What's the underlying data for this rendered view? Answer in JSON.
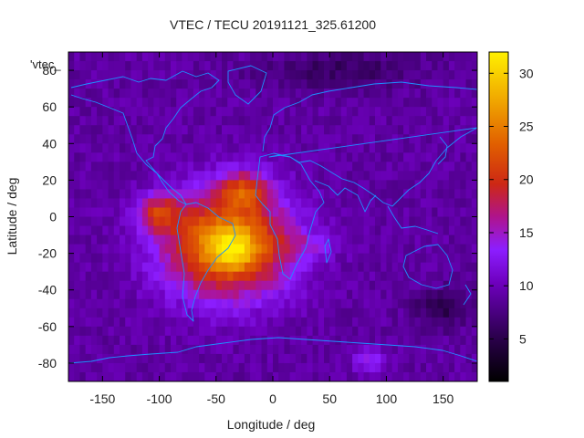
{
  "chart_data": {
    "type": "heatmap",
    "title": "VTEC / TECU 20191121_325.61200",
    "xlabel": "Longitude / deg",
    "ylabel": "Latitude / deg",
    "xlim": [
      -180,
      180
    ],
    "ylim": [
      -90,
      90
    ],
    "xticks": [
      -150,
      -100,
      -50,
      0,
      50,
      100,
      150
    ],
    "yticks": [
      -80,
      -60,
      -40,
      -20,
      0,
      20,
      40,
      60,
      80
    ],
    "grid": false,
    "legend": "top-left",
    "series_label": "'vtec_",
    "colorbar": {
      "min": 1,
      "max": 32,
      "ticks": [
        5,
        10,
        15,
        20,
        25,
        30
      ],
      "palette": "black-purple-red-orange-yellow"
    },
    "background_value": 9,
    "features": [
      {
        "name": "South American anomaly",
        "lon": -40,
        "lat": -15,
        "lon_spread": 55,
        "lat_spread": 28,
        "value": 18
      },
      {
        "name": "Atlantic crest",
        "lon": -25,
        "lat": 15,
        "lon_spread": 22,
        "lat_spread": 10,
        "value": 9
      },
      {
        "name": "Southern crest",
        "lon": -35,
        "lat": -18,
        "lon_spread": 20,
        "lat_spread": 10,
        "value": 6
      },
      {
        "name": "Pacific crest",
        "lon": -100,
        "lat": 2,
        "lon_spread": 18,
        "lat_spread": 10,
        "value": 9
      },
      {
        "name": "South Atlantic tongue",
        "lon": 30,
        "lat": -15,
        "lon_spread": 30,
        "lat_spread": 6,
        "value": 3
      },
      {
        "name": "Indian Ocean patch",
        "lon": 85,
        "lat": -78,
        "lon_spread": 15,
        "lat_spread": 6,
        "value": 5
      },
      {
        "name": "Southern Pacific low",
        "lon": 150,
        "lat": -50,
        "lon_spread": 25,
        "lat_spread": 10,
        "value": -4
      },
      {
        "name": "Arctic low",
        "lon": 60,
        "lat": 80,
        "lon_spread": 70,
        "lat_spread": 10,
        "value": -3
      }
    ],
    "coastline_color": "#1e90ff"
  }
}
